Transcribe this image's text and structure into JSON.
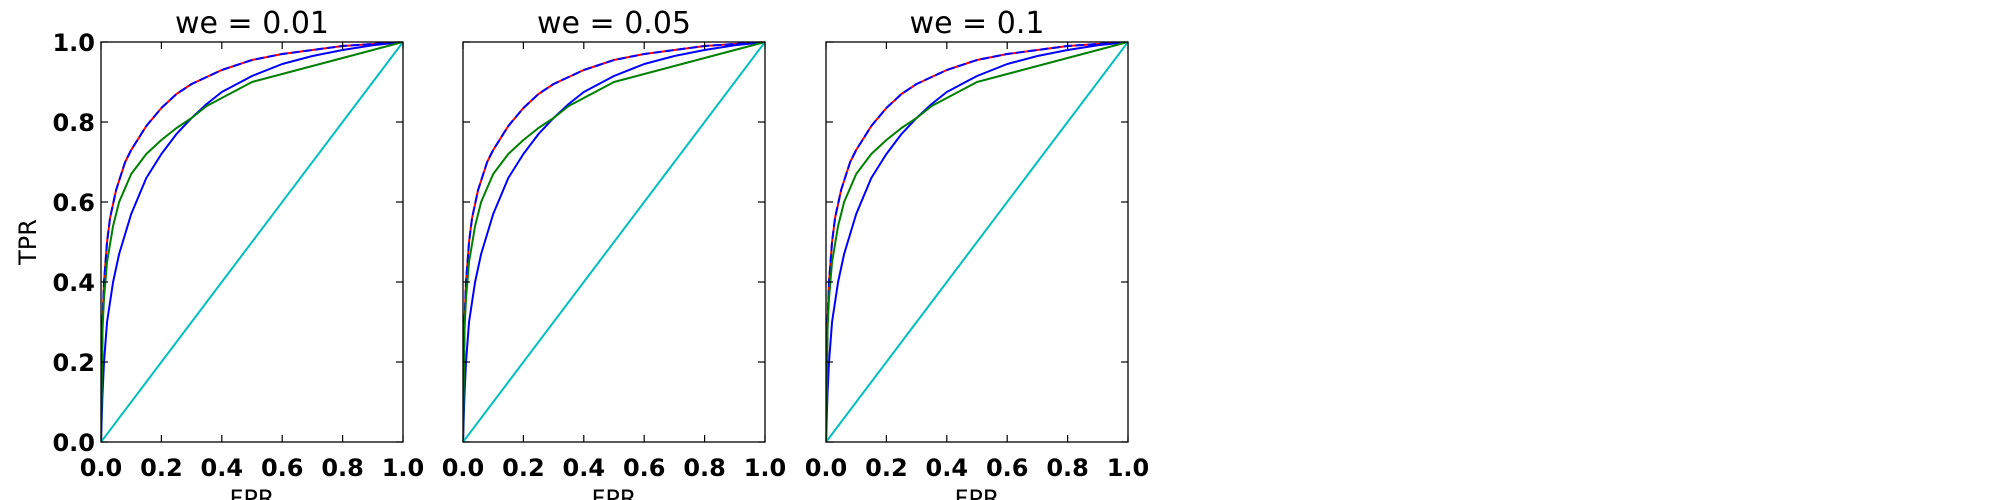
{
  "chart_data": [
    {
      "type": "line",
      "title": "we = 0.01",
      "xlabel": "FPR",
      "ylabel": "TPR",
      "xlim": [
        0.0,
        1.0
      ],
      "ylim": [
        0.0,
        1.0
      ],
      "xticks": [
        "0.0",
        "0.2",
        "0.4",
        "0.6",
        "0.8",
        "1.0"
      ],
      "yticks": [
        "0.0",
        "0.2",
        "0.4",
        "0.6",
        "0.8",
        "1.0"
      ],
      "grid": false,
      "series": [
        {
          "color": "#ff0000",
          "dash": false,
          "x": [
            0,
            0.005,
            0.01,
            0.02,
            0.03,
            0.05,
            0.08,
            0.1,
            0.15,
            0.2,
            0.25,
            0.3,
            0.4,
            0.5,
            0.6,
            0.7,
            0.8,
            0.9,
            1.0
          ],
          "y": [
            0,
            0.3,
            0.4,
            0.5,
            0.56,
            0.63,
            0.7,
            0.73,
            0.79,
            0.835,
            0.87,
            0.895,
            0.93,
            0.955,
            0.97,
            0.98,
            0.99,
            0.995,
            1.0
          ]
        },
        {
          "color": "#0000ff",
          "dash": true,
          "x": [
            0,
            0.005,
            0.01,
            0.02,
            0.03,
            0.05,
            0.08,
            0.1,
            0.15,
            0.2,
            0.25,
            0.3,
            0.4,
            0.5,
            0.6,
            0.7,
            0.8,
            0.9,
            1.0
          ],
          "y": [
            0,
            0.3,
            0.4,
            0.5,
            0.56,
            0.63,
            0.7,
            0.73,
            0.79,
            0.835,
            0.87,
            0.895,
            0.93,
            0.955,
            0.97,
            0.98,
            0.99,
            0.995,
            1.0
          ]
        },
        {
          "color": "#0000ff",
          "dash": false,
          "x": [
            0,
            0.005,
            0.01,
            0.02,
            0.04,
            0.06,
            0.1,
            0.15,
            0.2,
            0.25,
            0.3,
            0.35,
            0.4,
            0.5,
            0.6,
            0.7,
            0.8,
            0.9,
            1.0
          ],
          "y": [
            0,
            0.12,
            0.2,
            0.3,
            0.4,
            0.47,
            0.57,
            0.66,
            0.72,
            0.77,
            0.81,
            0.845,
            0.875,
            0.915,
            0.945,
            0.965,
            0.98,
            0.992,
            1.0
          ]
        },
        {
          "color": "#008000",
          "dash": false,
          "x": [
            0,
            0.005,
            0.01,
            0.02,
            0.04,
            0.06,
            0.1,
            0.15,
            0.2,
            0.25,
            0.3,
            0.35,
            0.4,
            0.5,
            0.6,
            0.7,
            0.8,
            0.9,
            1.0
          ],
          "y": [
            0,
            0.28,
            0.36,
            0.45,
            0.54,
            0.6,
            0.67,
            0.72,
            0.755,
            0.785,
            0.81,
            0.84,
            0.86,
            0.9,
            0.92,
            0.94,
            0.96,
            0.98,
            1.0
          ]
        },
        {
          "color": "#00bfbf",
          "dash": false,
          "x": [
            0,
            1.0
          ],
          "y": [
            0,
            1.0
          ]
        }
      ]
    },
    {
      "type": "line",
      "title": "we = 0.05",
      "xlabel": "FPR",
      "ylabel": "",
      "xlim": [
        0.0,
        1.0
      ],
      "ylim": [
        0.0,
        1.0
      ],
      "xticks": [
        "0.0",
        "0.2",
        "0.4",
        "0.6",
        "0.8",
        "1.0"
      ],
      "yticks": [],
      "grid": false,
      "series": [
        {
          "color": "#ff0000",
          "dash": false,
          "x": [
            0,
            0.005,
            0.01,
            0.02,
            0.03,
            0.05,
            0.08,
            0.1,
            0.15,
            0.2,
            0.25,
            0.3,
            0.4,
            0.5,
            0.6,
            0.7,
            0.8,
            0.9,
            1.0
          ],
          "y": [
            0,
            0.3,
            0.4,
            0.5,
            0.56,
            0.63,
            0.7,
            0.73,
            0.79,
            0.835,
            0.87,
            0.895,
            0.93,
            0.955,
            0.97,
            0.98,
            0.99,
            0.995,
            1.0
          ]
        },
        {
          "color": "#0000ff",
          "dash": true,
          "x": [
            0,
            0.005,
            0.01,
            0.02,
            0.03,
            0.05,
            0.08,
            0.1,
            0.15,
            0.2,
            0.25,
            0.3,
            0.4,
            0.5,
            0.6,
            0.7,
            0.8,
            0.9,
            1.0
          ],
          "y": [
            0,
            0.3,
            0.4,
            0.5,
            0.56,
            0.63,
            0.7,
            0.73,
            0.79,
            0.835,
            0.87,
            0.895,
            0.93,
            0.955,
            0.97,
            0.98,
            0.99,
            0.995,
            1.0
          ]
        },
        {
          "color": "#0000ff",
          "dash": false,
          "x": [
            0,
            0.005,
            0.01,
            0.02,
            0.04,
            0.06,
            0.1,
            0.15,
            0.2,
            0.25,
            0.3,
            0.35,
            0.4,
            0.5,
            0.6,
            0.7,
            0.8,
            0.9,
            1.0
          ],
          "y": [
            0,
            0.12,
            0.2,
            0.3,
            0.4,
            0.47,
            0.57,
            0.66,
            0.72,
            0.77,
            0.81,
            0.845,
            0.875,
            0.915,
            0.945,
            0.965,
            0.98,
            0.992,
            1.0
          ]
        },
        {
          "color": "#008000",
          "dash": false,
          "x": [
            0,
            0.005,
            0.01,
            0.02,
            0.04,
            0.06,
            0.1,
            0.15,
            0.2,
            0.25,
            0.3,
            0.35,
            0.4,
            0.5,
            0.6,
            0.7,
            0.8,
            0.9,
            1.0
          ],
          "y": [
            0,
            0.28,
            0.36,
            0.45,
            0.54,
            0.6,
            0.67,
            0.72,
            0.755,
            0.785,
            0.81,
            0.84,
            0.86,
            0.9,
            0.92,
            0.94,
            0.96,
            0.98,
            1.0
          ]
        },
        {
          "color": "#00bfbf",
          "dash": false,
          "x": [
            0,
            1.0
          ],
          "y": [
            0,
            1.0
          ]
        }
      ]
    },
    {
      "type": "line",
      "title": "we = 0.1",
      "xlabel": "FPR",
      "ylabel": "",
      "xlim": [
        0.0,
        1.0
      ],
      "ylim": [
        0.0,
        1.0
      ],
      "xticks": [
        "0.0",
        "0.2",
        "0.4",
        "0.6",
        "0.8",
        "1.0"
      ],
      "yticks": [],
      "grid": false,
      "series": [
        {
          "color": "#ff0000",
          "dash": false,
          "x": [
            0,
            0.005,
            0.01,
            0.02,
            0.03,
            0.05,
            0.08,
            0.1,
            0.15,
            0.2,
            0.25,
            0.3,
            0.4,
            0.5,
            0.6,
            0.7,
            0.8,
            0.9,
            1.0
          ],
          "y": [
            0,
            0.3,
            0.4,
            0.5,
            0.56,
            0.63,
            0.7,
            0.73,
            0.79,
            0.835,
            0.87,
            0.895,
            0.93,
            0.955,
            0.97,
            0.98,
            0.99,
            0.995,
            1.0
          ]
        },
        {
          "color": "#0000ff",
          "dash": true,
          "x": [
            0,
            0.005,
            0.01,
            0.02,
            0.03,
            0.05,
            0.08,
            0.1,
            0.15,
            0.2,
            0.25,
            0.3,
            0.4,
            0.5,
            0.6,
            0.7,
            0.8,
            0.9,
            1.0
          ],
          "y": [
            0,
            0.3,
            0.4,
            0.5,
            0.56,
            0.63,
            0.7,
            0.73,
            0.79,
            0.835,
            0.87,
            0.895,
            0.93,
            0.955,
            0.97,
            0.98,
            0.99,
            0.995,
            1.0
          ]
        },
        {
          "color": "#0000ff",
          "dash": false,
          "x": [
            0,
            0.005,
            0.01,
            0.02,
            0.04,
            0.06,
            0.1,
            0.15,
            0.2,
            0.25,
            0.3,
            0.35,
            0.4,
            0.5,
            0.6,
            0.7,
            0.8,
            0.9,
            1.0
          ],
          "y": [
            0,
            0.12,
            0.2,
            0.3,
            0.4,
            0.47,
            0.57,
            0.66,
            0.72,
            0.77,
            0.81,
            0.845,
            0.875,
            0.915,
            0.945,
            0.965,
            0.98,
            0.992,
            1.0
          ]
        },
        {
          "color": "#008000",
          "dash": false,
          "x": [
            0,
            0.005,
            0.01,
            0.02,
            0.04,
            0.06,
            0.1,
            0.15,
            0.2,
            0.25,
            0.3,
            0.35,
            0.4,
            0.5,
            0.6,
            0.7,
            0.8,
            0.9,
            1.0
          ],
          "y": [
            0,
            0.28,
            0.36,
            0.45,
            0.54,
            0.6,
            0.67,
            0.72,
            0.755,
            0.785,
            0.81,
            0.84,
            0.86,
            0.9,
            0.92,
            0.94,
            0.96,
            0.98,
            1.0
          ]
        },
        {
          "color": "#00bfbf",
          "dash": false,
          "x": [
            0,
            1.0
          ],
          "y": [
            0,
            1.0
          ]
        }
      ]
    }
  ]
}
